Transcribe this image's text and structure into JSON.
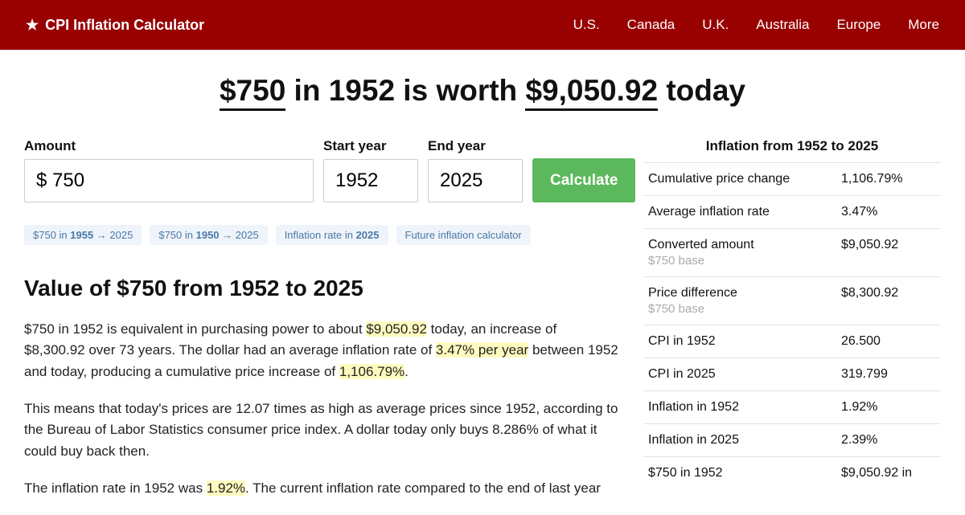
{
  "brand": "CPI Inflation Calculator",
  "nav": [
    "U.S.",
    "Canada",
    "U.K.",
    "Australia",
    "Europe",
    "More"
  ],
  "headline": {
    "amount": "$750",
    "mid": " in 1952 is worth ",
    "result": "$9,050.92",
    "after": " today"
  },
  "form": {
    "amount_label": "Amount",
    "amount_value": "$ 750",
    "start_label": "Start year",
    "start_value": "1952",
    "end_label": "End year",
    "end_value": "2025",
    "calc_label": "Calculate"
  },
  "pills": [
    {
      "pre": "$750 in ",
      "bold": "1955",
      "post": " → 2025"
    },
    {
      "pre": "$750 in ",
      "bold": "1950",
      "post": " → 2025"
    },
    {
      "pre": "Inflation rate in ",
      "bold": "2025",
      "post": ""
    },
    {
      "pre": "Future inflation calculator",
      "bold": "",
      "post": ""
    }
  ],
  "section_title": "Value of $750 from 1952 to 2025",
  "p1_a": "$750 in 1952 is equivalent in purchasing power to about ",
  "p1_hl1": "$9,050.92",
  "p1_b": " today, an increase of $8,300.92 over 73 years. The dollar had an average inflation rate of ",
  "p1_hl2": "3.47% per year",
  "p1_c": " between 1952 and today, producing a cumulative price increase of ",
  "p1_hl3": "1,106.79%",
  "p1_d": ".",
  "p2": "This means that today's prices are 12.07 times as high as average prices since 1952, according to the Bureau of Labor Statistics consumer price index. A dollar today only buys 8.286% of what it could buy back then.",
  "p3_a": "The inflation rate in 1952 was ",
  "p3_hl": "1.92%",
  "p3_b": ". The current inflation rate compared to the end of last year",
  "side_title": "Inflation from 1952 to 2025",
  "rows": [
    {
      "label": "Cumulative price change",
      "sub": "",
      "val": "1,106.79%"
    },
    {
      "label": "Average inflation rate",
      "sub": "",
      "val": "3.47%"
    },
    {
      "label": "Converted amount",
      "sub": "$750 base",
      "val": "$9,050.92"
    },
    {
      "label": "Price difference",
      "sub": "$750 base",
      "val": "$8,300.92"
    },
    {
      "label": "CPI in 1952",
      "sub": "",
      "val": "26.500"
    },
    {
      "label": "CPI in 2025",
      "sub": "",
      "val": "319.799"
    },
    {
      "label": "Inflation in 1952",
      "sub": "",
      "val": "1.92%"
    },
    {
      "label": "Inflation in 2025",
      "sub": "",
      "val": "2.39%"
    },
    {
      "label": "$750 in 1952",
      "sub": "",
      "val": "$9,050.92 in"
    }
  ],
  "colors": {
    "header_bg": "#990000",
    "pill_bg": "#eff4fa",
    "pill_fg": "#4b79a8",
    "highlight_bg": "#fffbbf",
    "calc_bg": "#5cb85c",
    "border": "#e2e2e2"
  }
}
